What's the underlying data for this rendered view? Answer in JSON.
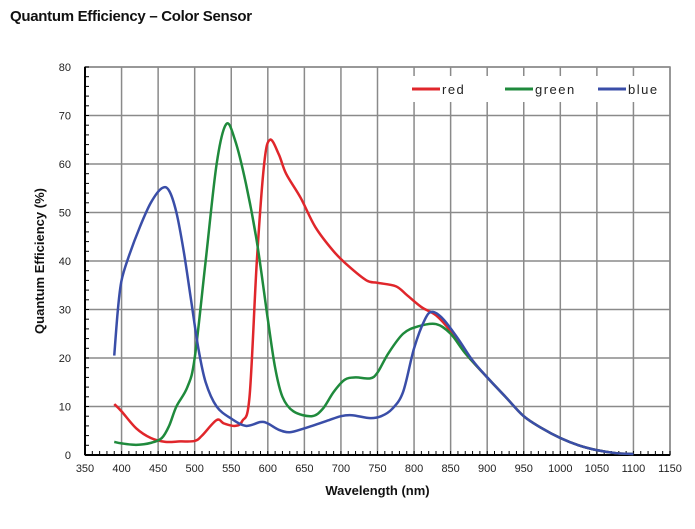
{
  "chart_data": {
    "type": "line",
    "title": "Quantum Efficiency – Color Sensor",
    "xlabel": "Wavelength (nm)",
    "ylabel": "Quantum Efficiency (%)",
    "xlim": [
      350,
      1150
    ],
    "ylim": [
      0,
      80
    ],
    "xticks": [
      350,
      400,
      450,
      500,
      550,
      600,
      650,
      700,
      750,
      800,
      850,
      900,
      950,
      1000,
      1050,
      1100,
      1150
    ],
    "yticks": [
      0,
      10,
      20,
      30,
      40,
      50,
      60,
      70,
      80
    ],
    "grid": true,
    "legend_position": "top-right",
    "series": [
      {
        "name": "red",
        "color": "#e0262b",
        "points": [
          [
            390,
            10.5
          ],
          [
            400,
            9
          ],
          [
            420,
            5.5
          ],
          [
            440,
            3.5
          ],
          [
            460,
            2.7
          ],
          [
            480,
            2.8
          ],
          [
            500,
            2.9
          ],
          [
            510,
            4
          ],
          [
            530,
            7.2
          ],
          [
            540,
            6.5
          ],
          [
            555,
            6
          ],
          [
            565,
            7
          ],
          [
            575,
            12
          ],
          [
            585,
            40
          ],
          [
            595,
            60
          ],
          [
            603,
            65
          ],
          [
            615,
            62
          ],
          [
            625,
            58
          ],
          [
            645,
            53
          ],
          [
            665,
            47
          ],
          [
            690,
            42
          ],
          [
            710,
            39
          ],
          [
            735,
            36
          ],
          [
            750,
            35.5
          ],
          [
            775,
            34.8
          ],
          [
            790,
            33
          ],
          [
            810,
            30.5
          ],
          [
            830,
            28.8
          ],
          [
            850,
            25.5
          ],
          [
            870,
            21
          ],
          [
            900,
            16
          ],
          [
            925,
            12
          ],
          [
            950,
            8
          ],
          [
            975,
            5.5
          ],
          [
            1000,
            3.5
          ],
          [
            1025,
            2
          ],
          [
            1050,
            1
          ],
          [
            1075,
            0.4
          ],
          [
            1100,
            0.2
          ]
        ]
      },
      {
        "name": "green",
        "color": "#1f8a3c",
        "points": [
          [
            390,
            2.7
          ],
          [
            400,
            2.4
          ],
          [
            420,
            2.1
          ],
          [
            440,
            2.5
          ],
          [
            455,
            3.5
          ],
          [
            465,
            6
          ],
          [
            475,
            10
          ],
          [
            490,
            14
          ],
          [
            500,
            20
          ],
          [
            515,
            40
          ],
          [
            530,
            60
          ],
          [
            543,
            68.2
          ],
          [
            555,
            65
          ],
          [
            570,
            56
          ],
          [
            585,
            44
          ],
          [
            600,
            28
          ],
          [
            610,
            18
          ],
          [
            620,
            12
          ],
          [
            635,
            9
          ],
          [
            660,
            8
          ],
          [
            675,
            9.5
          ],
          [
            690,
            13
          ],
          [
            705,
            15.5
          ],
          [
            720,
            16
          ],
          [
            740,
            15.8
          ],
          [
            750,
            17
          ],
          [
            765,
            21
          ],
          [
            785,
            25
          ],
          [
            805,
            26.5
          ],
          [
            830,
            27
          ],
          [
            850,
            25
          ],
          [
            870,
            21
          ],
          [
            900,
            16
          ],
          [
            925,
            12
          ],
          [
            950,
            8
          ],
          [
            975,
            5.5
          ],
          [
            1000,
            3.5
          ],
          [
            1025,
            2
          ],
          [
            1050,
            1
          ],
          [
            1075,
            0.4
          ],
          [
            1100,
            0.2
          ]
        ]
      },
      {
        "name": "blue",
        "color": "#3a4ea8",
        "points": [
          [
            390,
            20.5
          ],
          [
            395,
            30
          ],
          [
            400,
            36
          ],
          [
            410,
            41
          ],
          [
            425,
            47
          ],
          [
            440,
            52
          ],
          [
            455,
            55
          ],
          [
            465,
            54.5
          ],
          [
            475,
            50
          ],
          [
            485,
            42
          ],
          [
            495,
            32
          ],
          [
            505,
            22
          ],
          [
            515,
            15
          ],
          [
            530,
            10
          ],
          [
            550,
            7.5
          ],
          [
            570,
            6
          ],
          [
            590,
            6.8
          ],
          [
            600,
            6.5
          ],
          [
            615,
            5.2
          ],
          [
            630,
            4.7
          ],
          [
            650,
            5.5
          ],
          [
            680,
            7
          ],
          [
            700,
            8
          ],
          [
            715,
            8.2
          ],
          [
            740,
            7.6
          ],
          [
            755,
            8
          ],
          [
            770,
            9.5
          ],
          [
            785,
            13
          ],
          [
            800,
            22
          ],
          [
            815,
            28
          ],
          [
            825,
            29.5
          ],
          [
            840,
            28
          ],
          [
            860,
            24
          ],
          [
            880,
            19.5
          ],
          [
            900,
            16
          ],
          [
            925,
            12
          ],
          [
            950,
            8
          ],
          [
            975,
            5.5
          ],
          [
            1000,
            3.5
          ],
          [
            1025,
            2
          ],
          [
            1050,
            1
          ],
          [
            1075,
            0.4
          ],
          [
            1100,
            0.2
          ]
        ]
      }
    ]
  }
}
